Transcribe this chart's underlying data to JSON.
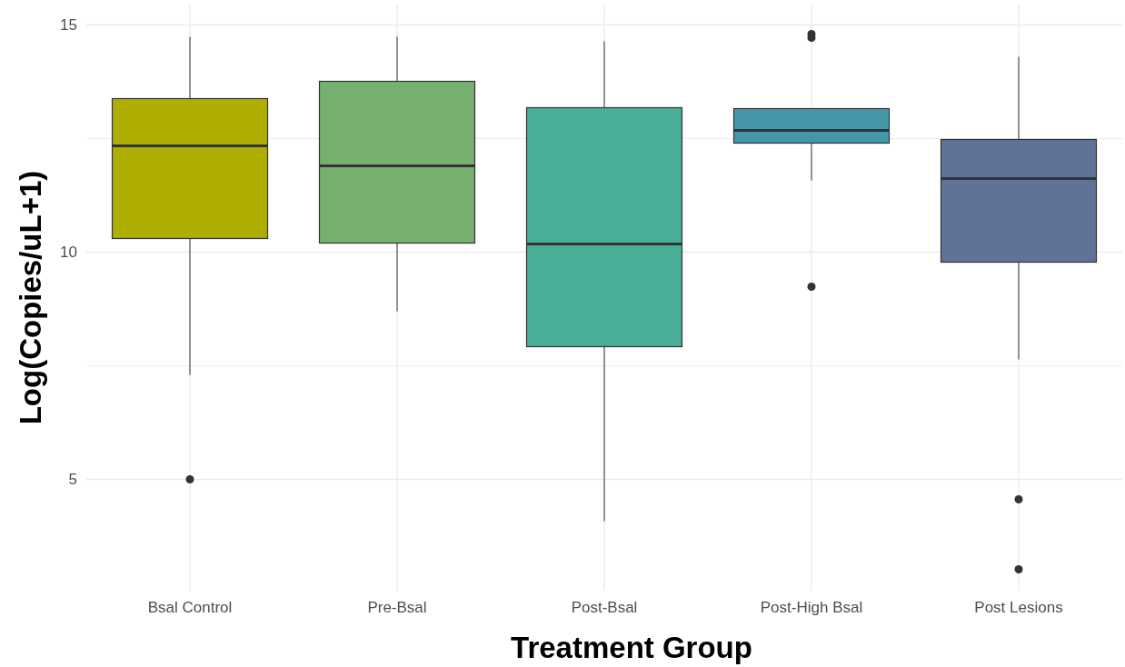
{
  "chart_data": {
    "type": "box",
    "xlabel": "Treatment Group",
    "ylabel": "Log(Copies/uL+1)",
    "categories": [
      "Bsal Control",
      "Pre-Bsal",
      "Post-Bsal",
      "Post-High Bsal",
      "Post Lesions"
    ],
    "colors": [
      "#adae00",
      "#76b06f",
      "#48ae98",
      "#4596a8",
      "#5e7396"
    ],
    "boxes": [
      {
        "low": 7.3,
        "q1": 10.3,
        "median": 12.34,
        "q3": 13.38,
        "high": 14.74,
        "outliers": [
          5.0
        ]
      },
      {
        "low": 8.7,
        "q1": 10.2,
        "median": 11.9,
        "q3": 13.76,
        "high": 14.74
      },
      {
        "low": 4.08,
        "q1": 7.92,
        "median": 10.18,
        "q3": 13.18,
        "high": 14.64
      },
      {
        "low": 11.58,
        "q1": 12.4,
        "median": 12.68,
        "q3": 13.16,
        "high": 13.16,
        "outliers": [
          14.8,
          14.72,
          9.24
        ]
      },
      {
        "low": 7.64,
        "q1": 9.78,
        "median": 11.62,
        "q3": 12.48,
        "high": 14.3,
        "outliers": [
          4.56,
          3.02
        ]
      }
    ],
    "ylim": [
      2.55,
      15.45
    ],
    "yticks": [
      5,
      {
        "value": 7.5,
        "label": null
      },
      10,
      {
        "value": 12.5,
        "label": null
      },
      15
    ],
    "grid": true
  }
}
